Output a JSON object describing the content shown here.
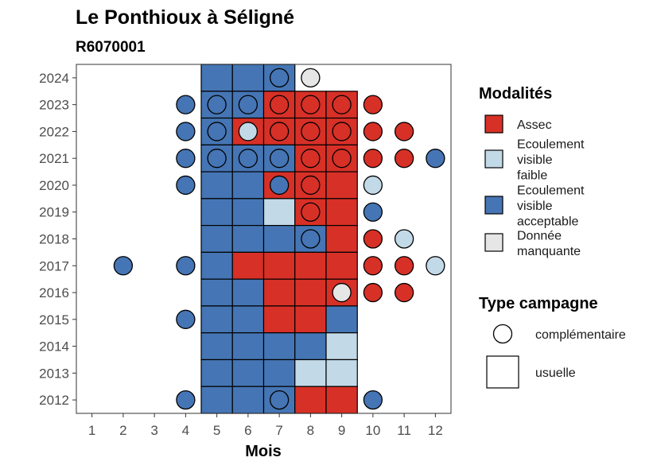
{
  "chart_data": {
    "type": "heatmap",
    "title": "Le Ponthioux à Séligné",
    "subtitle": "R6070001",
    "xlabel": "Mois",
    "ylabel": "",
    "x_ticks": [
      "1",
      "2",
      "3",
      "4",
      "5",
      "6",
      "7",
      "8",
      "9",
      "10",
      "11",
      "12"
    ],
    "y_ticks": [
      "2012",
      "2013",
      "2014",
      "2015",
      "2016",
      "2017",
      "2018",
      "2019",
      "2020",
      "2021",
      "2022",
      "2023",
      "2024"
    ],
    "xlim": [
      0.5,
      12.5
    ],
    "ylim": [
      2011.5,
      2024.5
    ],
    "grid": false,
    "legend_placement": "right",
    "colors": {
      "assec": "#d73027",
      "faible": "#c2d9e8",
      "acceptable": "#4575b4",
      "manquante": "#e6e6e6"
    },
    "legends": {
      "modalites": {
        "title": "Modalités",
        "items": [
          {
            "key": "assec",
            "lines": [
              "Assec"
            ]
          },
          {
            "key": "faible",
            "lines": [
              "Ecoulement",
              "visible",
              "faible"
            ]
          },
          {
            "key": "acceptable",
            "lines": [
              "Ecoulement",
              "visible",
              "acceptable"
            ]
          },
          {
            "key": "manquante",
            "lines": [
              "Donnée",
              "manquante"
            ]
          }
        ]
      },
      "campagne": {
        "title": "Type campagne",
        "items": [
          {
            "shape": "circle",
            "label": "complémentaire"
          },
          {
            "shape": "square",
            "label": "usuelle"
          }
        ]
      }
    },
    "usuelle": [
      {
        "year": 2024,
        "month": 5,
        "value": "acceptable"
      },
      {
        "year": 2024,
        "month": 6,
        "value": "acceptable"
      },
      {
        "year": 2024,
        "month": 7,
        "value": "acceptable"
      },
      {
        "year": 2023,
        "month": 5,
        "value": "acceptable"
      },
      {
        "year": 2023,
        "month": 6,
        "value": "acceptable"
      },
      {
        "year": 2023,
        "month": 7,
        "value": "assec"
      },
      {
        "year": 2023,
        "month": 8,
        "value": "assec"
      },
      {
        "year": 2023,
        "month": 9,
        "value": "assec"
      },
      {
        "year": 2022,
        "month": 5,
        "value": "acceptable"
      },
      {
        "year": 2022,
        "month": 6,
        "value": "assec"
      },
      {
        "year": 2022,
        "month": 7,
        "value": "assec"
      },
      {
        "year": 2022,
        "month": 8,
        "value": "assec"
      },
      {
        "year": 2022,
        "month": 9,
        "value": "assec"
      },
      {
        "year": 2021,
        "month": 5,
        "value": "acceptable"
      },
      {
        "year": 2021,
        "month": 6,
        "value": "acceptable"
      },
      {
        "year": 2021,
        "month": 7,
        "value": "acceptable"
      },
      {
        "year": 2021,
        "month": 8,
        "value": "assec"
      },
      {
        "year": 2021,
        "month": 9,
        "value": "assec"
      },
      {
        "year": 2020,
        "month": 5,
        "value": "acceptable"
      },
      {
        "year": 2020,
        "month": 6,
        "value": "acceptable"
      },
      {
        "year": 2020,
        "month": 7,
        "value": "assec"
      },
      {
        "year": 2020,
        "month": 8,
        "value": "assec"
      },
      {
        "year": 2020,
        "month": 9,
        "value": "assec"
      },
      {
        "year": 2019,
        "month": 5,
        "value": "acceptable"
      },
      {
        "year": 2019,
        "month": 6,
        "value": "acceptable"
      },
      {
        "year": 2019,
        "month": 7,
        "value": "faible"
      },
      {
        "year": 2019,
        "month": 8,
        "value": "assec"
      },
      {
        "year": 2019,
        "month": 9,
        "value": "assec"
      },
      {
        "year": 2018,
        "month": 5,
        "value": "acceptable"
      },
      {
        "year": 2018,
        "month": 6,
        "value": "acceptable"
      },
      {
        "year": 2018,
        "month": 7,
        "value": "acceptable"
      },
      {
        "year": 2018,
        "month": 8,
        "value": "acceptable"
      },
      {
        "year": 2018,
        "month": 9,
        "value": "assec"
      },
      {
        "year": 2017,
        "month": 5,
        "value": "acceptable"
      },
      {
        "year": 2017,
        "month": 6,
        "value": "assec"
      },
      {
        "year": 2017,
        "month": 7,
        "value": "assec"
      },
      {
        "year": 2017,
        "month": 8,
        "value": "assec"
      },
      {
        "year": 2017,
        "month": 9,
        "value": "assec"
      },
      {
        "year": 2016,
        "month": 5,
        "value": "acceptable"
      },
      {
        "year": 2016,
        "month": 6,
        "value": "acceptable"
      },
      {
        "year": 2016,
        "month": 7,
        "value": "assec"
      },
      {
        "year": 2016,
        "month": 8,
        "value": "assec"
      },
      {
        "year": 2016,
        "month": 9,
        "value": "assec"
      },
      {
        "year": 2015,
        "month": 5,
        "value": "acceptable"
      },
      {
        "year": 2015,
        "month": 6,
        "value": "acceptable"
      },
      {
        "year": 2015,
        "month": 7,
        "value": "assec"
      },
      {
        "year": 2015,
        "month": 8,
        "value": "assec"
      },
      {
        "year": 2015,
        "month": 9,
        "value": "acceptable"
      },
      {
        "year": 2014,
        "month": 5,
        "value": "acceptable"
      },
      {
        "year": 2014,
        "month": 6,
        "value": "acceptable"
      },
      {
        "year": 2014,
        "month": 7,
        "value": "acceptable"
      },
      {
        "year": 2014,
        "month": 8,
        "value": "acceptable"
      },
      {
        "year": 2014,
        "month": 9,
        "value": "faible"
      },
      {
        "year": 2013,
        "month": 5,
        "value": "acceptable"
      },
      {
        "year": 2013,
        "month": 6,
        "value": "acceptable"
      },
      {
        "year": 2013,
        "month": 7,
        "value": "acceptable"
      },
      {
        "year": 2013,
        "month": 8,
        "value": "faible"
      },
      {
        "year": 2013,
        "month": 9,
        "value": "faible"
      },
      {
        "year": 2012,
        "month": 5,
        "value": "acceptable"
      },
      {
        "year": 2012,
        "month": 6,
        "value": "acceptable"
      },
      {
        "year": 2012,
        "month": 7,
        "value": "acceptable"
      },
      {
        "year": 2012,
        "month": 8,
        "value": "assec"
      },
      {
        "year": 2012,
        "month": 9,
        "value": "assec"
      }
    ],
    "complementaire": [
      {
        "year": 2024,
        "month": 7,
        "value": "acceptable"
      },
      {
        "year": 2024,
        "month": 8,
        "value": "manquante"
      },
      {
        "year": 2023,
        "month": 4,
        "value": "acceptable"
      },
      {
        "year": 2023,
        "month": 5,
        "value": "acceptable"
      },
      {
        "year": 2023,
        "month": 6,
        "value": "acceptable"
      },
      {
        "year": 2023,
        "month": 7,
        "value": "assec"
      },
      {
        "year": 2023,
        "month": 8,
        "value": "assec"
      },
      {
        "year": 2023,
        "month": 9,
        "value": "assec"
      },
      {
        "year": 2023,
        "month": 10,
        "value": "assec"
      },
      {
        "year": 2022,
        "month": 4,
        "value": "acceptable"
      },
      {
        "year": 2022,
        "month": 5,
        "value": "acceptable"
      },
      {
        "year": 2022,
        "month": 6,
        "value": "faible"
      },
      {
        "year": 2022,
        "month": 7,
        "value": "assec"
      },
      {
        "year": 2022,
        "month": 8,
        "value": "assec"
      },
      {
        "year": 2022,
        "month": 9,
        "value": "assec"
      },
      {
        "year": 2022,
        "month": 10,
        "value": "assec"
      },
      {
        "year": 2022,
        "month": 11,
        "value": "assec"
      },
      {
        "year": 2021,
        "month": 4,
        "value": "acceptable"
      },
      {
        "year": 2021,
        "month": 5,
        "value": "acceptable"
      },
      {
        "year": 2021,
        "month": 6,
        "value": "acceptable"
      },
      {
        "year": 2021,
        "month": 7,
        "value": "acceptable"
      },
      {
        "year": 2021,
        "month": 8,
        "value": "assec"
      },
      {
        "year": 2021,
        "month": 9,
        "value": "assec"
      },
      {
        "year": 2021,
        "month": 10,
        "value": "assec"
      },
      {
        "year": 2021,
        "month": 11,
        "value": "assec"
      },
      {
        "year": 2021,
        "month": 12,
        "value": "acceptable"
      },
      {
        "year": 2020,
        "month": 4,
        "value": "acceptable"
      },
      {
        "year": 2020,
        "month": 7,
        "value": "acceptable"
      },
      {
        "year": 2020,
        "month": 8,
        "value": "assec"
      },
      {
        "year": 2020,
        "month": 10,
        "value": "faible"
      },
      {
        "year": 2019,
        "month": 8,
        "value": "assec"
      },
      {
        "year": 2019,
        "month": 10,
        "value": "acceptable"
      },
      {
        "year": 2018,
        "month": 8,
        "value": "acceptable"
      },
      {
        "year": 2018,
        "month": 10,
        "value": "assec"
      },
      {
        "year": 2018,
        "month": 11,
        "value": "faible"
      },
      {
        "year": 2017,
        "month": 2,
        "value": "acceptable"
      },
      {
        "year": 2017,
        "month": 4,
        "value": "acceptable"
      },
      {
        "year": 2017,
        "month": 10,
        "value": "assec"
      },
      {
        "year": 2017,
        "month": 11,
        "value": "assec"
      },
      {
        "year": 2017,
        "month": 12,
        "value": "faible"
      },
      {
        "year": 2016,
        "month": 9,
        "value": "manquante"
      },
      {
        "year": 2016,
        "month": 10,
        "value": "assec"
      },
      {
        "year": 2016,
        "month": 11,
        "value": "assec"
      },
      {
        "year": 2015,
        "month": 4,
        "value": "acceptable"
      },
      {
        "year": 2012,
        "month": 4,
        "value": "acceptable"
      },
      {
        "year": 2012,
        "month": 7,
        "value": "acceptable"
      },
      {
        "year": 2012,
        "month": 10,
        "value": "acceptable"
      }
    ]
  }
}
